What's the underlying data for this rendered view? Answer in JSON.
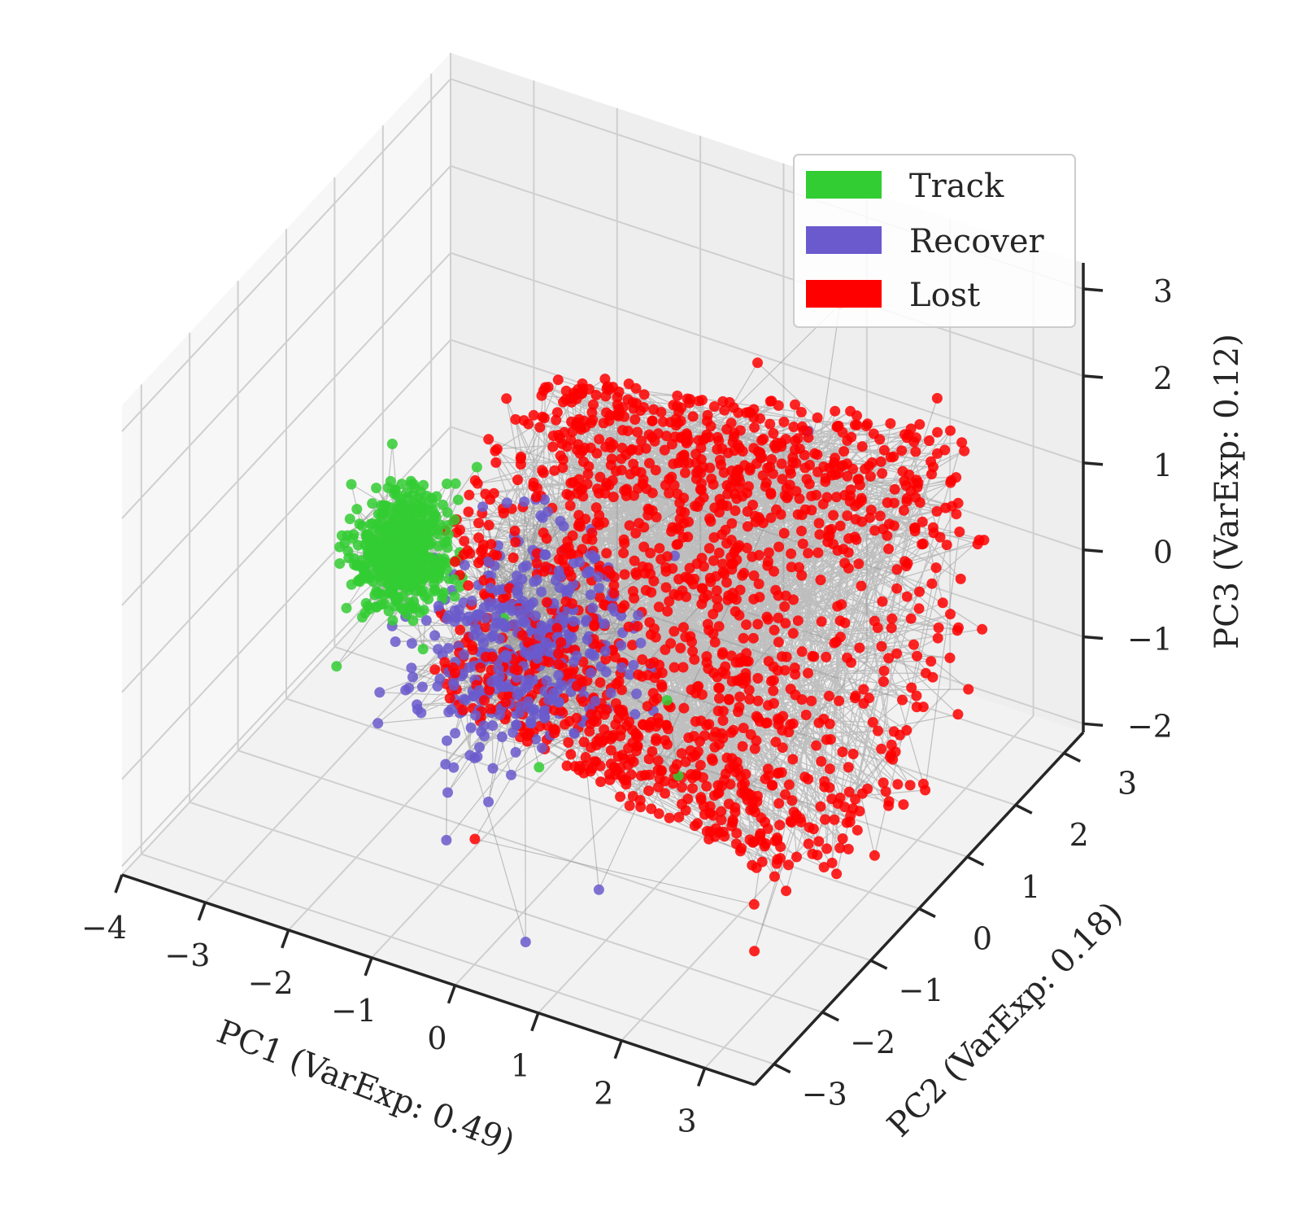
{
  "chart_data": {
    "type": "scatter",
    "projection": "3d",
    "title": "",
    "xlabel": "PC1 (VarExp: 0.49)",
    "ylabel": "PC2 (VarExp: 0.18)",
    "zlabel": "PC3 (VarExp: 0.12)",
    "xlim": [
      -4,
      3.6
    ],
    "ylim": [
      -3.4,
      3.4
    ],
    "zlim": [
      -2.1,
      3.3
    ],
    "xticks": [
      "−4",
      "−3",
      "−2",
      "−1",
      "0",
      "1",
      "2",
      "3"
    ],
    "yticks": [
      "−3",
      "−2",
      "−1",
      "0",
      "1",
      "2",
      "3"
    ],
    "zticks": [
      "−2",
      "−1",
      "0",
      "1",
      "2",
      "3"
    ],
    "grid": true,
    "points_connected_in_sequence": true,
    "line_color": "#808080",
    "legend": {
      "placement": "top-right",
      "entries": [
        {
          "label": "Track",
          "color": "#32cd32"
        },
        {
          "label": "Recover",
          "color": "#6a5acd"
        },
        {
          "label": "Lost",
          "color": "#ff0000"
        }
      ]
    },
    "series": [
      {
        "name": "Track",
        "color": "#32cd32",
        "description_cluster": {
          "center": [
            -2.5,
            -0.2,
            0.2
          ],
          "spread": [
            0.5,
            0.6,
            0.5
          ],
          "n": 520
        },
        "points": [
          [
            -3.1,
            -0.4,
            0.3
          ],
          [
            -2.6,
            0.1,
            0.6
          ],
          [
            -2.2,
            -0.6,
            -0.2
          ],
          [
            -2.9,
            0.3,
            1.0
          ],
          [
            -2.4,
            -0.9,
            0.0
          ],
          [
            -1.8,
            -0.2,
            0.4
          ],
          [
            -2.7,
            -1.2,
            -0.6
          ],
          [
            -2.0,
            0.5,
            0.9
          ],
          [
            -1.5,
            0.2,
            -0.5
          ],
          [
            -0.5,
            -0.8,
            -1.3
          ],
          [
            0.4,
            0.3,
            -0.9
          ],
          [
            1.0,
            -0.5,
            -1.1
          ]
        ]
      },
      {
        "name": "Recover",
        "color": "#6a5acd",
        "description_cluster": {
          "center": [
            -0.8,
            -0.5,
            -0.2
          ],
          "spread": [
            1.0,
            1.4,
            1.0
          ],
          "n": 420
        },
        "points": [
          [
            -1.2,
            -1.5,
            -0.8
          ],
          [
            -0.8,
            -2.2,
            -1.4
          ],
          [
            0.2,
            0.8,
            0.4
          ],
          [
            -0.4,
            -0.3,
            0.1
          ],
          [
            0.8,
            -1.8,
            -1.7
          ],
          [
            1.4,
            1.5,
            1.8
          ],
          [
            -1.6,
            -0.9,
            -0.3
          ],
          [
            0.5,
            -2.8,
            -1.8
          ]
        ]
      },
      {
        "name": "Lost",
        "color": "#ff0000",
        "description_shell": {
          "x_range": [
            -1.5,
            3.0
          ],
          "radius_yz": 2.4,
          "center_yz": [
            0.2,
            0.4
          ],
          "n": 1500
        },
        "points": [
          [
            2.6,
            2.1,
            2.2
          ],
          [
            2.9,
            -2.2,
            -1.5
          ],
          [
            1.8,
            2.6,
            0.6
          ],
          [
            3.0,
            0.0,
            2.8
          ],
          [
            0.5,
            2.0,
            2.0
          ],
          [
            -0.4,
            -2.3,
            -1.2
          ],
          [
            2.2,
            -1.0,
            -1.9
          ],
          [
            1.2,
            2.5,
            2.6
          ]
        ]
      }
    ]
  }
}
